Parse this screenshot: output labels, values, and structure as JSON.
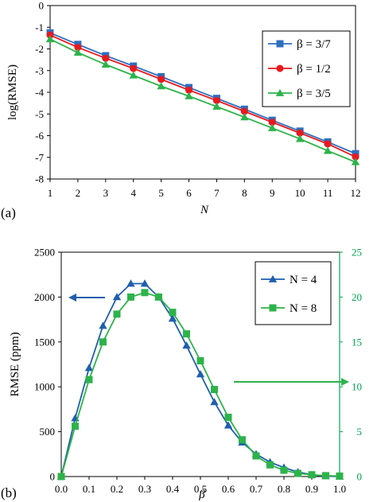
{
  "chart_data": [
    {
      "type": "line",
      "panel_label": "(a)",
      "xlabel": "N",
      "ylabel": "log(RMSE)",
      "x": [
        1,
        2,
        3,
        4,
        5,
        6,
        7,
        8,
        9,
        10,
        11,
        12
      ],
      "xlim": [
        1,
        12
      ],
      "ylim": [
        -8,
        0
      ],
      "x_ticks": [
        "1",
        "2",
        "3",
        "4",
        "5",
        "6",
        "7",
        "8",
        "9",
        "10",
        "11",
        "12"
      ],
      "y_ticks": [
        "0",
        "-1",
        "-2",
        "-3",
        "-4",
        "-5",
        "-6",
        "-7",
        "-8"
      ],
      "grid": false,
      "legend_position": "top-right",
      "series": [
        {
          "name": "β = 3/7",
          "color": "#2E6FBE",
          "marker": "square",
          "values": [
            -1.26,
            -1.79,
            -2.31,
            -2.79,
            -3.28,
            -3.78,
            -4.28,
            -4.78,
            -5.29,
            -5.79,
            -6.29,
            -6.83
          ]
        },
        {
          "name": "β = 1/2",
          "color": "#E8191E",
          "marker": "circle",
          "values": [
            -1.36,
            -1.93,
            -2.43,
            -2.9,
            -3.4,
            -3.9,
            -4.38,
            -4.88,
            -5.38,
            -5.88,
            -6.38,
            -6.98
          ]
        },
        {
          "name": "β = 3/5",
          "color": "#2DB34A",
          "marker": "triangle",
          "values": [
            -1.55,
            -2.17,
            -2.72,
            -3.22,
            -3.72,
            -4.18,
            -4.66,
            -5.15,
            -5.65,
            -6.15,
            -6.7,
            -7.22
          ]
        }
      ]
    },
    {
      "type": "line",
      "panel_label": "(b)",
      "xlabel": "β",
      "ylabel": "RMSE (ppm)",
      "xlim": [
        0,
        1
      ],
      "ylim_left": [
        0,
        2500
      ],
      "ylim_right": [
        0,
        25
      ],
      "x_ticks": [
        "0.0",
        "0.1",
        "0.2",
        "0.3",
        "0.4",
        "0.5",
        "0.6",
        "0.7",
        "0.8",
        "0.9",
        "1.0"
      ],
      "y_ticks_left": [
        "0",
        "500",
        "1000",
        "1500",
        "2000",
        "2500"
      ],
      "y_ticks_right": [
        "0",
        "5",
        "10",
        "15",
        "20",
        "25"
      ],
      "grid": false,
      "legend_position": "top-right",
      "series": [
        {
          "name": "N = 4",
          "color": "#1F5FAD",
          "marker": "triangle",
          "axis": "left",
          "x": [
            0,
            0.05,
            0.1,
            0.15,
            0.2,
            0.25,
            0.3,
            0.35,
            0.4,
            0.45,
            0.5,
            0.55,
            0.6,
            0.65,
            0.7,
            0.75,
            0.8,
            0.85,
            0.9,
            0.95,
            1.0
          ],
          "values": [
            0,
            650,
            1210,
            1680,
            2000,
            2150,
            2150,
            2000,
            1760,
            1460,
            1140,
            830,
            570,
            380,
            250,
            160,
            100,
            50,
            20,
            5,
            0
          ]
        },
        {
          "name": "N = 8",
          "color": "#2DB34A",
          "marker": "square",
          "axis": "right",
          "x": [
            0,
            0.05,
            0.1,
            0.15,
            0.2,
            0.25,
            0.3,
            0.35,
            0.4,
            0.45,
            0.5,
            0.55,
            0.6,
            0.65,
            0.7,
            0.75,
            0.8,
            0.85,
            0.9,
            0.95,
            1.0
          ],
          "values": [
            0,
            5.6,
            10.8,
            15,
            18.1,
            20,
            20.5,
            20,
            18.3,
            15.9,
            12.9,
            9.7,
            6.6,
            4.1,
            2.3,
            1.3,
            0.7,
            0.35,
            0.2,
            0.1,
            0.05
          ]
        }
      ]
    }
  ]
}
